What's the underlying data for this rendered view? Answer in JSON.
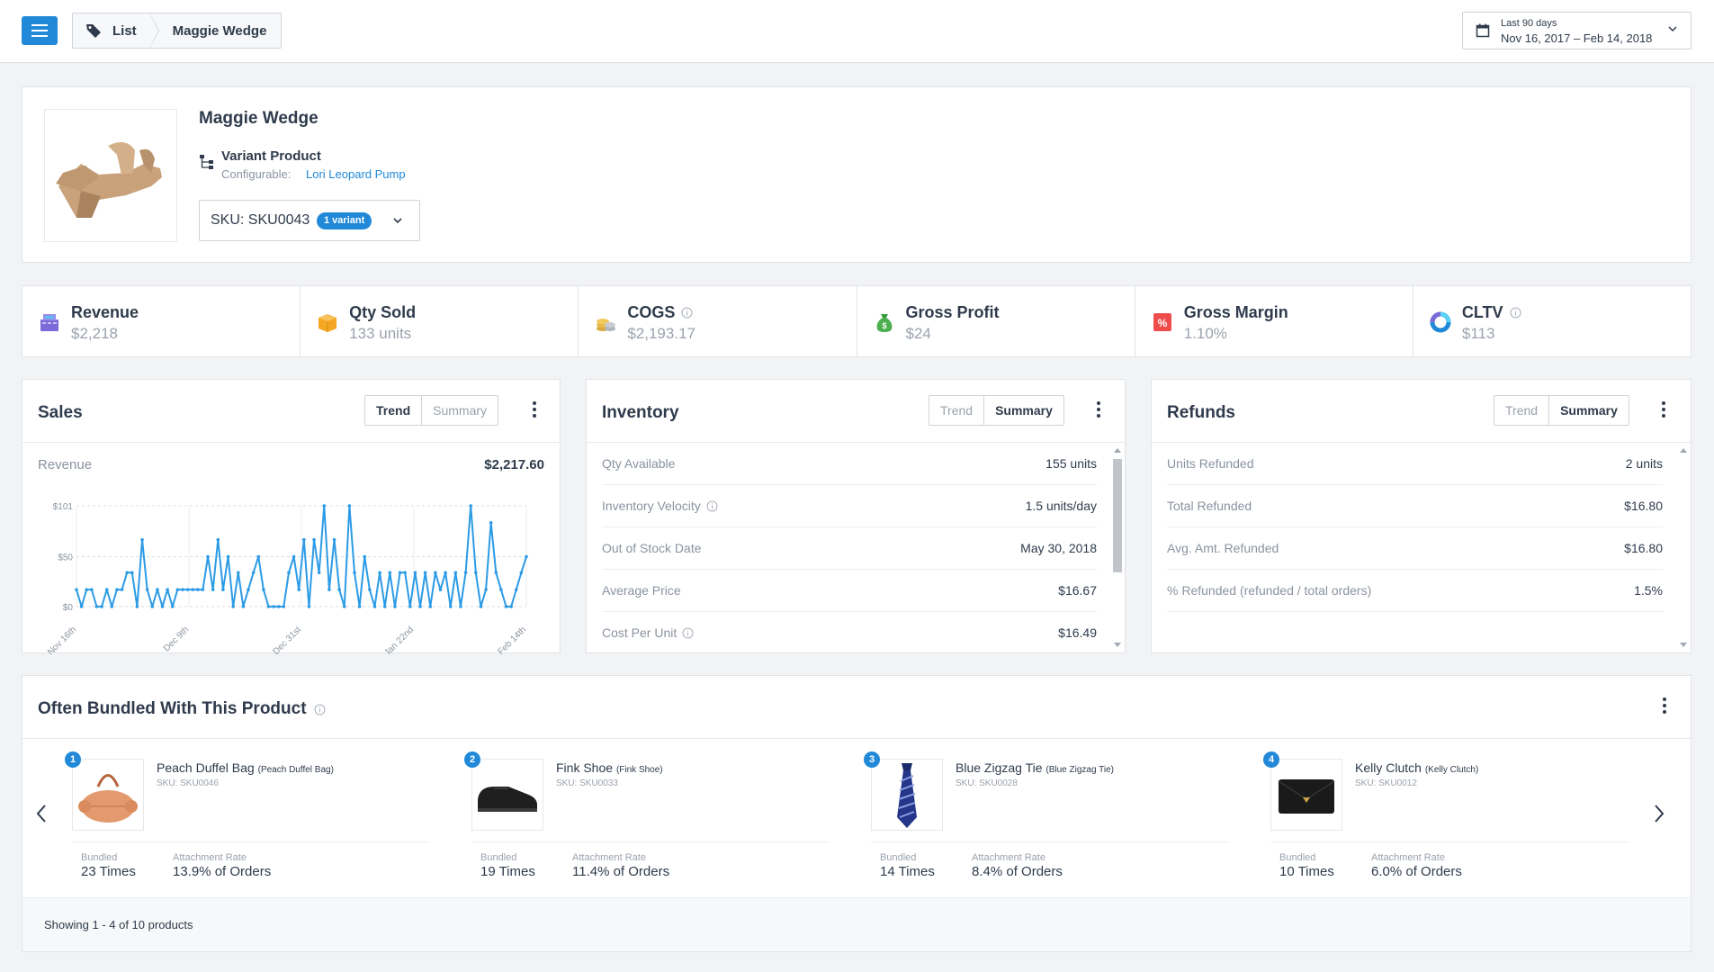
{
  "header": {
    "breadcrumb": {
      "list_label": "List",
      "current_label": "Maggie Wedge"
    },
    "date_range": {
      "label": "Last 90 days",
      "value": "Nov 16, 2017 – Feb 14, 2018"
    }
  },
  "product": {
    "name": "Maggie Wedge",
    "variant_title": "Variant Product",
    "configurable_label": "Configurable:",
    "configurable_link": "Lori Leopard Pump",
    "sku": "SKU: SKU0043",
    "variant_badge": "1 variant"
  },
  "metrics": [
    {
      "label": "Revenue",
      "value": "$2,218",
      "icon": "register-icon"
    },
    {
      "label": "Qty Sold",
      "value": "133 units",
      "icon": "box-icon"
    },
    {
      "label": "COGS",
      "value": "$2,193.17",
      "icon": "coins-icon"
    },
    {
      "label": "Gross Profit",
      "value": "$24",
      "icon": "money-bag-icon"
    },
    {
      "label": "Gross Margin",
      "value": "1.10%",
      "icon": "percent-icon"
    },
    {
      "label": "CLTV",
      "value": "$113",
      "icon": "donut-icon"
    }
  ],
  "sales": {
    "title": "Sales",
    "toggle": [
      "Trend",
      "Summary"
    ],
    "active": "Trend",
    "revenue_label": "Revenue",
    "revenue_value": "$2,217.60"
  },
  "inventory": {
    "title": "Inventory",
    "toggle": [
      "Trend",
      "Summary"
    ],
    "active": "Summary",
    "rows": [
      {
        "label": "Qty Available",
        "value": "155 units"
      },
      {
        "label": "Inventory Velocity",
        "value": "1.5 units/day"
      },
      {
        "label": "Out of Stock Date",
        "value": "May 30, 2018"
      },
      {
        "label": "Average Price",
        "value": "$16.67"
      },
      {
        "label": "Cost Per Unit",
        "value": "$16.49"
      }
    ]
  },
  "refunds": {
    "title": "Refunds",
    "toggle": [
      "Trend",
      "Summary"
    ],
    "active": "Summary",
    "rows": [
      {
        "label": "Units Refunded",
        "value": "2 units"
      },
      {
        "label": "Total Refunded",
        "value": "$16.80"
      },
      {
        "label": "Avg. Amt. Refunded",
        "value": "$16.80"
      },
      {
        "label": "% Refunded (refunded / total orders)",
        "value": "1.5%"
      }
    ]
  },
  "bundled": {
    "title": "Often Bundled With This Product",
    "bundled_label": "Bundled",
    "attachment_label": "Attachment Rate",
    "footer": "Showing 1 - 4 of 10 products",
    "items": [
      {
        "num": "1",
        "name": "Peach Duffel Bag",
        "sub": "(Peach Duffel Bag)",
        "sku": "SKU: SKU0046",
        "bundled": "23 Times",
        "rate": "13.9% of Orders"
      },
      {
        "num": "2",
        "name": "Fink Shoe",
        "sub": "(Fink Shoe)",
        "sku": "SKU: SKU0033",
        "bundled": "19 Times",
        "rate": "11.4% of Orders"
      },
      {
        "num": "3",
        "name": "Blue Zigzag Tie",
        "sub": "(Blue Zigzag Tie)",
        "sku": "SKU: SKU0028",
        "bundled": "14 Times",
        "rate": "8.4% of Orders"
      },
      {
        "num": "4",
        "name": "Kelly Clutch",
        "sub": "(Kelly Clutch)",
        "sku": "SKU: SKU0012",
        "bundled": "10 Times",
        "rate": "6.0% of Orders"
      }
    ]
  },
  "colors": {
    "accent": "#2189d8",
    "line": "#2c9be6"
  },
  "chart_data": {
    "type": "line",
    "title": "",
    "xlabel": "",
    "ylabel": "",
    "ylim": [
      0,
      101
    ],
    "y_ticks": [
      "$0",
      "$50",
      "$101"
    ],
    "x_ticks": [
      "Nov 16th",
      "Dec 9th",
      "Dec 31st",
      "Jan 22nd",
      "Feb 14th"
    ],
    "grid": true,
    "series": [
      {
        "values": [
          17,
          0,
          17,
          17,
          0,
          0,
          17,
          0,
          17,
          17,
          34,
          34,
          0,
          67,
          17,
          0,
          17,
          0,
          17,
          0,
          17,
          17,
          17,
          17,
          17,
          17,
          50,
          17,
          67,
          17,
          50,
          0,
          34,
          0,
          17,
          34,
          50,
          17,
          0,
          0,
          0,
          0,
          34,
          50,
          17,
          67,
          0,
          67,
          34,
          101,
          17,
          67,
          17,
          0,
          101,
          34,
          0,
          50,
          17,
          0,
          34,
          0,
          34,
          0,
          34,
          34,
          0,
          34,
          0,
          34,
          0,
          34,
          17,
          34,
          0,
          34,
          0,
          34,
          101,
          34,
          0,
          17,
          84,
          34,
          17,
          0,
          0,
          17,
          34,
          50
        ]
      }
    ]
  }
}
